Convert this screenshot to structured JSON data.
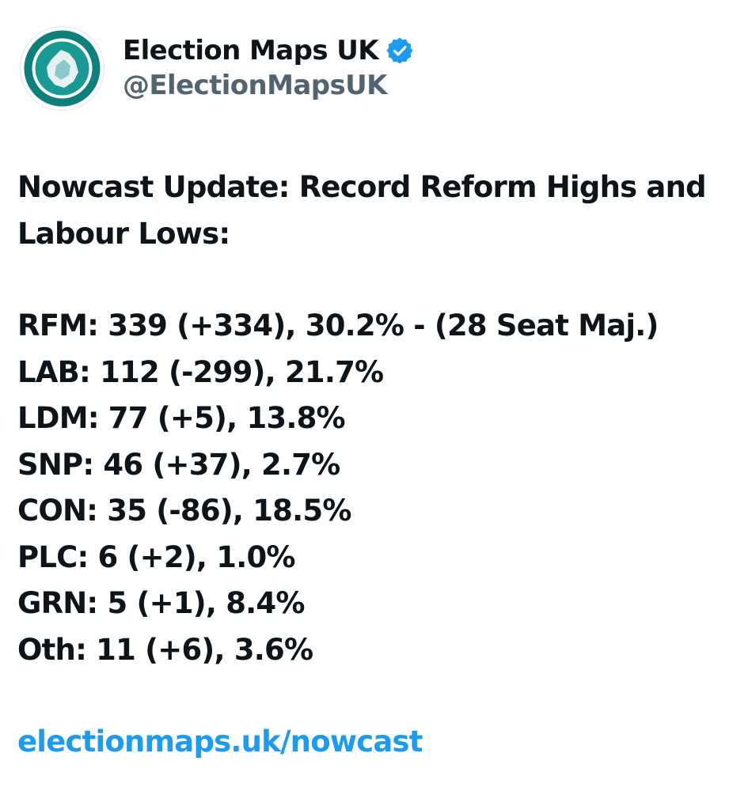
{
  "author": {
    "display_name": "Election Maps UK",
    "handle": "@ElectionMapsUK",
    "verified": true,
    "avatar_icon": "election-maps-uk-logo",
    "colors": {
      "avatar_ring": "#0e7f7a",
      "verified_badge": "#1d9bf0",
      "handle": "#536471"
    }
  },
  "tweet": {
    "headline": "Nowcast Update: Record Reform Highs and Labour Lows:",
    "results": [
      "RFM: 339 (+334), 30.2% - (28 Seat Maj.)",
      "LAB: 112 (-299), 21.7%",
      "LDM: 77 (+5), 13.8%",
      "SNP: 46 (+37), 2.7%",
      "CON: 35 (-86), 18.5%",
      "PLC: 6 (+2), 1.0%",
      "GRN: 5 (+1), 8.4%",
      "Oth: 11 (+6), 3.6%"
    ],
    "link_text": "electionmaps.uk/nowcast",
    "link_color": "#1d9bf0"
  }
}
